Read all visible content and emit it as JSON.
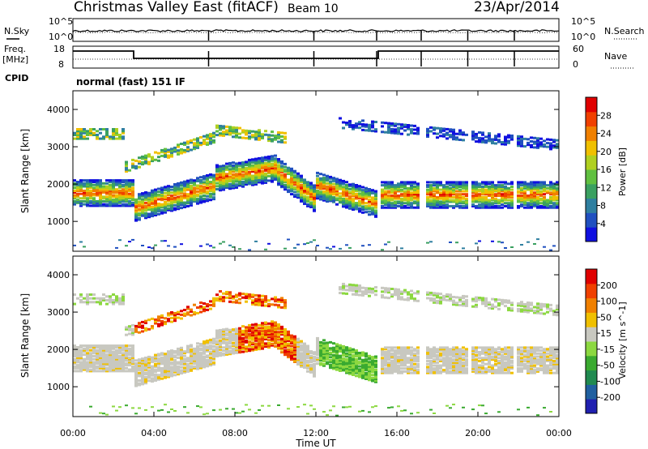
{
  "header": {
    "title": "Christmas Valley East (fitACF)",
    "beam": "Beam 10",
    "date": "23/Apr/2014"
  },
  "noise_panel": {
    "left_label": "N.Sky",
    "right_label": "N.Search",
    "left_ticks": [
      "10^5",
      "10^0"
    ],
    "right_ticks": [
      "10^5",
      "10^0"
    ]
  },
  "freq_panel": {
    "left_label_1": "Freq.",
    "left_label_2": "[MHz]",
    "right_label": "Nave",
    "left_ticks": [
      "18",
      "8"
    ],
    "right_ticks": [
      "60",
      "0"
    ]
  },
  "cpid_panel": {
    "label": "CPID",
    "text": "normal (fast) 151 IF"
  },
  "chart_data": [
    {
      "type": "heatmap",
      "name": "power",
      "ylabel": "Slant Range [km]",
      "y_ticks": [
        "1000",
        "2000",
        "3000",
        "4000"
      ],
      "colorbar_label": "Power [dB]",
      "colorbar_ticks": [
        "4",
        "8",
        "12",
        "16",
        "20",
        "24",
        "28"
      ],
      "colors": [
        "#1010e0",
        "#2050c0",
        "#2f7fa0",
        "#3aa060",
        "#60c040",
        "#b0d020",
        "#f0c000",
        "#f08000",
        "#f04000",
        "#e00000"
      ]
    },
    {
      "type": "heatmap",
      "name": "velocity",
      "ylabel": "Slant Range [km]",
      "y_ticks": [
        "1000",
        "2000",
        "3000",
        "4000"
      ],
      "colorbar_label": "Velocity [m s^-1]",
      "colorbar_ticks": [
        "200",
        "100",
        "50",
        "15",
        "-15",
        "-50",
        "-100",
        "-200"
      ],
      "colors": [
        "#2020b0",
        "#2060a0",
        "#208a50",
        "#3aaa30",
        "#8cd840",
        "#c8c8c0",
        "#f0c000",
        "#f08000",
        "#f04000",
        "#e00000"
      ]
    }
  ],
  "x_axis": {
    "label": "Time UT",
    "ticks": [
      "00:00",
      "04:00",
      "08:00",
      "12:00",
      "16:00",
      "20:00",
      "00:00"
    ]
  }
}
